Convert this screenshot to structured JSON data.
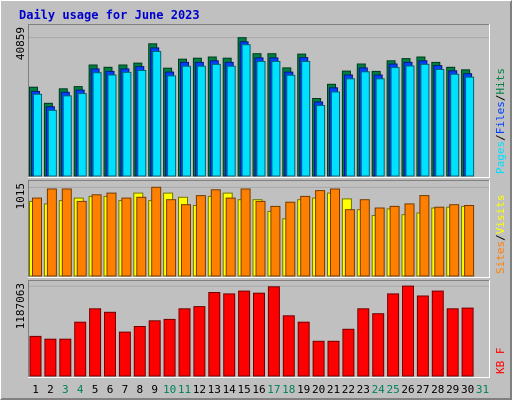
{
  "chart_data": {
    "type": "bar",
    "title": "Daily usage for June 2023",
    "days": [
      "1",
      "2",
      "3",
      "4",
      "5",
      "6",
      "7",
      "8",
      "9",
      "10",
      "11",
      "12",
      "13",
      "14",
      "15",
      "16",
      "17",
      "18",
      "19",
      "20",
      "21",
      "22",
      "23",
      "24",
      "25",
      "26",
      "27",
      "28",
      "29",
      "30",
      "31"
    ],
    "weekend_days": [
      "3",
      "4",
      "10",
      "11",
      "17",
      "18",
      "24",
      "25",
      "31"
    ],
    "colors": {
      "hits": "#008040",
      "files": "#0040ff",
      "pages": "#00e0ff",
      "visits": "#ffff00",
      "sites": "#ff8000",
      "kbf": "#ff0000",
      "panel_bg": "#c0c0c0",
      "weekday_text": "#000000",
      "weekend_text": "#00805c",
      "title": "#0000cc"
    },
    "panels": [
      {
        "name": "requests",
        "y_label": "40859",
        "ylim": [
          0,
          46000
        ],
        "legend": [
          {
            "key": "pages",
            "text": "Pages"
          },
          {
            "key": "separator",
            "text": "/"
          },
          {
            "key": "files",
            "text": "Files"
          },
          {
            "key": "separator",
            "text": "/"
          },
          {
            "key": "hits",
            "text": "Hits"
          }
        ],
        "series": [
          {
            "name": "Hits",
            "color_key": "hits",
            "values": [
              27600,
              22600,
              27100,
              27800,
              34500,
              33800,
              34500,
              35100,
              41100,
              33500,
              36300,
              36600,
              37000,
              36600,
              43000,
              38000,
              38000,
              33600,
              37900,
              24100,
              28500,
              32600,
              34800,
              32500,
              35800,
              36500,
              37000,
              35300,
              33800,
              33000,
              0
            ]
          },
          {
            "name": "Files",
            "color_key": "files",
            "values": [
              26300,
              21500,
              26000,
              26700,
              33300,
              32500,
              33300,
              34000,
              39800,
              32300,
              35300,
              35300,
              35800,
              35300,
              41700,
              36700,
              36700,
              32300,
              36800,
              23000,
              27400,
              31400,
              33600,
              31400,
              34800,
              35300,
              35800,
              34300,
              32700,
              31800,
              0
            ]
          },
          {
            "name": "Pages",
            "color_key": "pages",
            "values": [
              25400,
              20400,
              24900,
              25600,
              32100,
              31400,
              32200,
              32800,
              38700,
              31100,
              34100,
              34100,
              34700,
              34100,
              40800,
              35600,
              35600,
              31300,
              35600,
              21900,
              26100,
              30200,
              32400,
              30200,
              33700,
              34200,
              34700,
              33100,
              31600,
              30700,
              0
            ]
          }
        ]
      },
      {
        "name": "visitors",
        "y_label": "1015",
        "ylim": [
          0,
          1110
        ],
        "legend": [
          {
            "key": "sites",
            "text": "Sites"
          },
          {
            "key": "separator",
            "text": "/"
          },
          {
            "key": "visits",
            "text": "Visits"
          }
        ],
        "series": [
          {
            "name": "Visits",
            "color_key": "visits",
            "values": [
              900,
              870,
              910,
              940,
              960,
              960,
              910,
              1000,
              910,
              1000,
              950,
              850,
              960,
              1000,
              920,
              920,
              780,
              690,
              920,
              940,
              1000,
              930,
              800,
              730,
              810,
              740,
              760,
              820,
              830,
              840,
              0
            ]
          },
          {
            "name": "Sites",
            "color_key": "sites",
            "values": [
              940,
              1050,
              1050,
              900,
              980,
              1000,
              940,
              950,
              1070,
              920,
              860,
              970,
              1040,
              940,
              1050,
              900,
              840,
              890,
              960,
              1030,
              1050,
              800,
              920,
              820,
              840,
              870,
              970,
              830,
              860,
              850,
              0
            ]
          }
        ]
      },
      {
        "name": "kbytes",
        "y_label": "1187063",
        "ylim": [
          0,
          1300000
        ],
        "legend": [
          {
            "key": "kbf",
            "text": "KB F"
          }
        ],
        "series": [
          {
            "name": "KB F",
            "color_key": "kbf",
            "values": [
              560000,
              520000,
              520000,
              760000,
              950000,
              900000,
              620000,
              700000,
              780000,
              800000,
              950000,
              980000,
              1180000,
              1160000,
              1200000,
              1170000,
              1260000,
              850000,
              760000,
              490000,
              490000,
              660000,
              950000,
              880000,
              1160000,
              1270000,
              1130000,
              1200000,
              950000,
              960000,
              0
            ]
          }
        ]
      }
    ]
  }
}
